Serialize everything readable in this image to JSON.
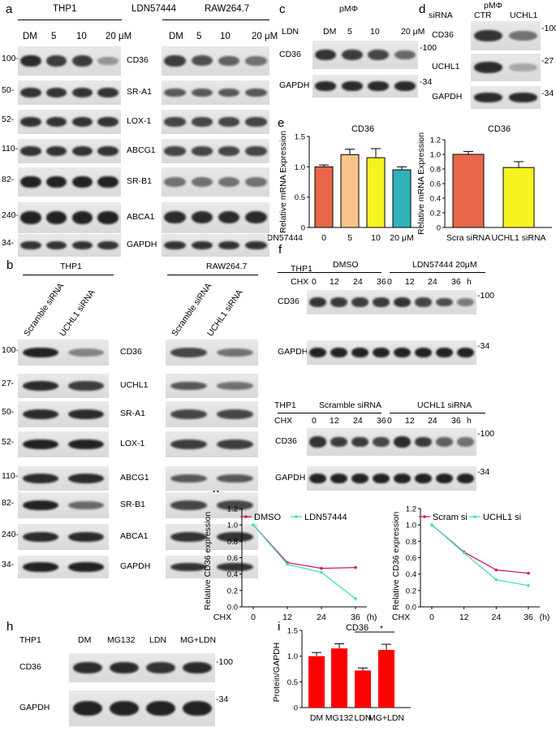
{
  "panel_a": {
    "letter": "a",
    "cell1": "THP1",
    "drug": "LDN57444",
    "cell2": "RAW264.7",
    "doses": [
      "DM",
      "5",
      "10",
      "20 μM"
    ],
    "rows": [
      {
        "mw": "100-",
        "label": "CD36",
        "t": [
          0.85,
          0.75,
          0.75,
          0.25
        ],
        "r": [
          0.75,
          0.65,
          0.55,
          0.45
        ]
      },
      {
        "mw": "50-",
        "label": "SR-A1",
        "t": [
          0.8,
          0.8,
          0.8,
          0.8
        ],
        "r": [
          0.6,
          0.6,
          0.6,
          0.6
        ]
      },
      {
        "mw": "52-",
        "label": "LOX-1",
        "t": [
          0.8,
          0.8,
          0.8,
          0.8
        ],
        "r": [
          0.7,
          0.7,
          0.7,
          0.7
        ]
      },
      {
        "mw": "110-",
        "label": "ABCG1",
        "t": [
          0.8,
          0.8,
          0.8,
          0.8
        ],
        "r": [
          0.7,
          0.7,
          0.7,
          0.7
        ]
      },
      {
        "mw": "82-",
        "label": "SR-B1",
        "t": [
          0.9,
          0.9,
          0.9,
          0.9
        ],
        "r": [
          0.45,
          0.45,
          0.45,
          0.45
        ]
      },
      {
        "mw": "240-",
        "label": "ABCA1",
        "t": [
          0.9,
          0.9,
          0.9,
          0.9
        ],
        "r": [
          0.85,
          0.85,
          0.85,
          0.85
        ]
      },
      {
        "mw": "34-",
        "label": "GAPDH",
        "t": [
          0.8,
          0.8,
          0.8,
          0.8
        ],
        "r": [
          0.8,
          0.8,
          0.8,
          0.8
        ]
      }
    ]
  },
  "panel_b": {
    "letter": "b",
    "cell1": "THP1",
    "cell2": "RAW264.7",
    "lanes": [
      "Scramble siRNA",
      "UCHL1 siRNA"
    ],
    "rows": [
      {
        "mw": "100-",
        "label": "CD36",
        "t": [
          0.9,
          0.35
        ],
        "r": [
          0.7,
          0.45
        ]
      },
      {
        "mw": "27-",
        "label": "UCHL1",
        "t": [
          0.85,
          0.75
        ],
        "r": [
          0.6,
          0.45
        ]
      },
      {
        "mw": "50-",
        "label": "SR-A1",
        "t": [
          0.85,
          0.85
        ],
        "r": [
          0.7,
          0.7
        ]
      },
      {
        "mw": "52-",
        "label": "LOX-1",
        "t": [
          0.9,
          0.9
        ],
        "r": [
          0.75,
          0.75
        ]
      },
      {
        "mw": "110-",
        "label": "ABCG1",
        "t": [
          0.85,
          0.85
        ],
        "r": [
          0.6,
          0.6
        ]
      },
      {
        "mw": "82-",
        "label": "SR-B1",
        "t": [
          0.9,
          0.5
        ],
        "r": [
          0.7,
          0.7
        ]
      },
      {
        "mw": "240-",
        "label": "ABCA1",
        "t": [
          0.85,
          0.85
        ],
        "r": [
          0.8,
          0.8
        ]
      },
      {
        "mw": "34-",
        "label": "GAPDH",
        "t": [
          0.9,
          0.9
        ],
        "r": [
          0.8,
          0.8
        ]
      }
    ]
  },
  "panel_c": {
    "letter": "c",
    "title": "pMΦ",
    "ldn": "LDN",
    "doses": [
      "DM",
      "5",
      "10",
      "20 μM"
    ],
    "rows": [
      {
        "label": "CD36",
        "mw": "-100",
        "v": [
          0.8,
          0.75,
          0.7,
          0.5
        ]
      },
      {
        "label": "GAPDH",
        "mw": "-34",
        "v": [
          0.85,
          0.85,
          0.85,
          0.85
        ]
      }
    ]
  },
  "panel_d": {
    "letter": "d",
    "title": "pMΦ",
    "sirna": "siRNA",
    "lanes": [
      "CTR",
      "UCHL1"
    ],
    "rows": [
      {
        "label": "CD36",
        "mw": "-100",
        "v": [
          0.8,
          0.45
        ]
      },
      {
        "label": "UCHL1",
        "mw": "-27",
        "v": [
          0.85,
          0.15
        ]
      },
      {
        "label": "GAPDH",
        "mw": "-34",
        "v": [
          0.85,
          0.85
        ]
      }
    ]
  },
  "panel_e": {
    "letter": "e",
    "left": {
      "title": "CD36",
      "ylabel": "Relative mRNA Expression",
      "xprefix": "LDN57444",
      "categories": [
        "0",
        "5",
        "10",
        "20 μM"
      ],
      "values": [
        1.0,
        1.2,
        1.15,
        0.95
      ],
      "errors": [
        0.03,
        0.09,
        0.15,
        0.05
      ],
      "colors": [
        "#e8674a",
        "#f5c48a",
        "#f7f221",
        "#2fb3b8"
      ],
      "yticks": [
        "0",
        "0.5",
        "1.0",
        "1.5"
      ]
    },
    "right": {
      "title": "CD36",
      "ylabel": "Relative mRNA Expression",
      "categories": [
        "Scra siRNA",
        "UCHL1 siRNA"
      ],
      "values": [
        1.0,
        0.82
      ],
      "errors": [
        0.04,
        0.08
      ],
      "colors": [
        "#e8674a",
        "#f7f221"
      ],
      "yticks": [
        "0",
        "0.2",
        "0.4",
        "0.6",
        "0.8",
        "1.0",
        "1.2"
      ]
    }
  },
  "panel_f": {
    "letter": "f",
    "top": {
      "cell": "THP1",
      "cond1": "DMSO",
      "cond2": "LDN57444 20μM",
      "chx": "CHX",
      "times": [
        "0",
        "12",
        "24",
        "36"
      ],
      "unit": "h",
      "rows": [
        {
          "label": "CD36",
          "mw": "-100",
          "v": [
            0.8,
            0.75,
            0.75,
            0.75,
            0.8,
            0.7,
            0.65,
            0.4
          ]
        },
        {
          "label": "GAPDH",
          "mw": "-34",
          "v": [
            0.9,
            0.9,
            0.9,
            0.9,
            0.9,
            0.9,
            0.9,
            0.9
          ]
        }
      ]
    },
    "bottom": {
      "cell": "THP1",
      "cond1": "Scramble siRNA",
      "cond2": "UCHL1 siRNA",
      "chx": "CHX",
      "times": [
        "0",
        "12",
        "24",
        "36"
      ],
      "unit": "h",
      "rows": [
        {
          "label": "CD36",
          "mw": "-100",
          "v": [
            0.8,
            0.75,
            0.75,
            0.7,
            0.85,
            0.75,
            0.55,
            0.45
          ]
        },
        {
          "label": "GAPDH",
          "mw": "-34",
          "v": [
            0.9,
            0.9,
            0.9,
            0.9,
            0.9,
            0.9,
            0.9,
            0.9
          ]
        }
      ]
    }
  },
  "panel_h": {
    "letter": "h",
    "cell": "THP1",
    "lanes": [
      "DM",
      "MG132",
      "LDN",
      "MG+LDN"
    ],
    "rows": [
      {
        "label": "CD36",
        "mw": "-100",
        "v": [
          0.85,
          0.85,
          0.8,
          0.85
        ]
      },
      {
        "label": "GAPDH",
        "mw": "-34",
        "v": [
          0.9,
          0.9,
          0.9,
          0.9
        ]
      }
    ]
  },
  "panel_g_letter": "g",
  "panel_i_letter": "i",
  "chart_data": [
    {
      "type": "line",
      "ylabel": "Relative CD36 expression",
      "xprefix": "CHX",
      "xunit": "(h)",
      "x": [
        0,
        12,
        24,
        36
      ],
      "ylim": [
        0,
        1.2
      ],
      "yticks": [
        0,
        0.2,
        0.4,
        0.6,
        0.8,
        1.0,
        1.2
      ],
      "series": [
        {
          "name": "DMSO",
          "color": "#d6185d",
          "values": [
            1.0,
            0.54,
            0.47,
            0.48
          ]
        },
        {
          "name": "LDN57444",
          "color": "#3fe0c8",
          "values": [
            1.0,
            0.52,
            0.42,
            0.1
          ]
        }
      ]
    },
    {
      "type": "line",
      "ylabel": "Relative CD36 expression",
      "xprefix": "CHX",
      "xunit": "(h)",
      "x": [
        0,
        12,
        24,
        36
      ],
      "ylim": [
        0,
        1.2
      ],
      "yticks": [
        0,
        0.2,
        0.4,
        0.6,
        0.8,
        1.0,
        1.2
      ],
      "series": [
        {
          "name": "Scram si",
          "color": "#d6185d",
          "values": [
            1.0,
            0.67,
            0.45,
            0.41
          ]
        },
        {
          "name": "UCHL1 si",
          "color": "#3fe0c8",
          "values": [
            1.0,
            0.66,
            0.33,
            0.26
          ]
        }
      ]
    },
    {
      "type": "bar",
      "title": "CD36",
      "ylabel": "Protein/GAPDH",
      "categories": [
        "DM",
        "MG132",
        "LDN",
        "MG+LDN"
      ],
      "values": [
        1.0,
        1.15,
        0.72,
        1.12
      ],
      "errors": [
        0.07,
        0.09,
        0.05,
        0.11
      ],
      "color": "#ff0000",
      "ylim": [
        0,
        1.5
      ],
      "yticks": [
        0,
        0.5,
        1.0,
        1.5
      ],
      "significance": "*"
    }
  ]
}
